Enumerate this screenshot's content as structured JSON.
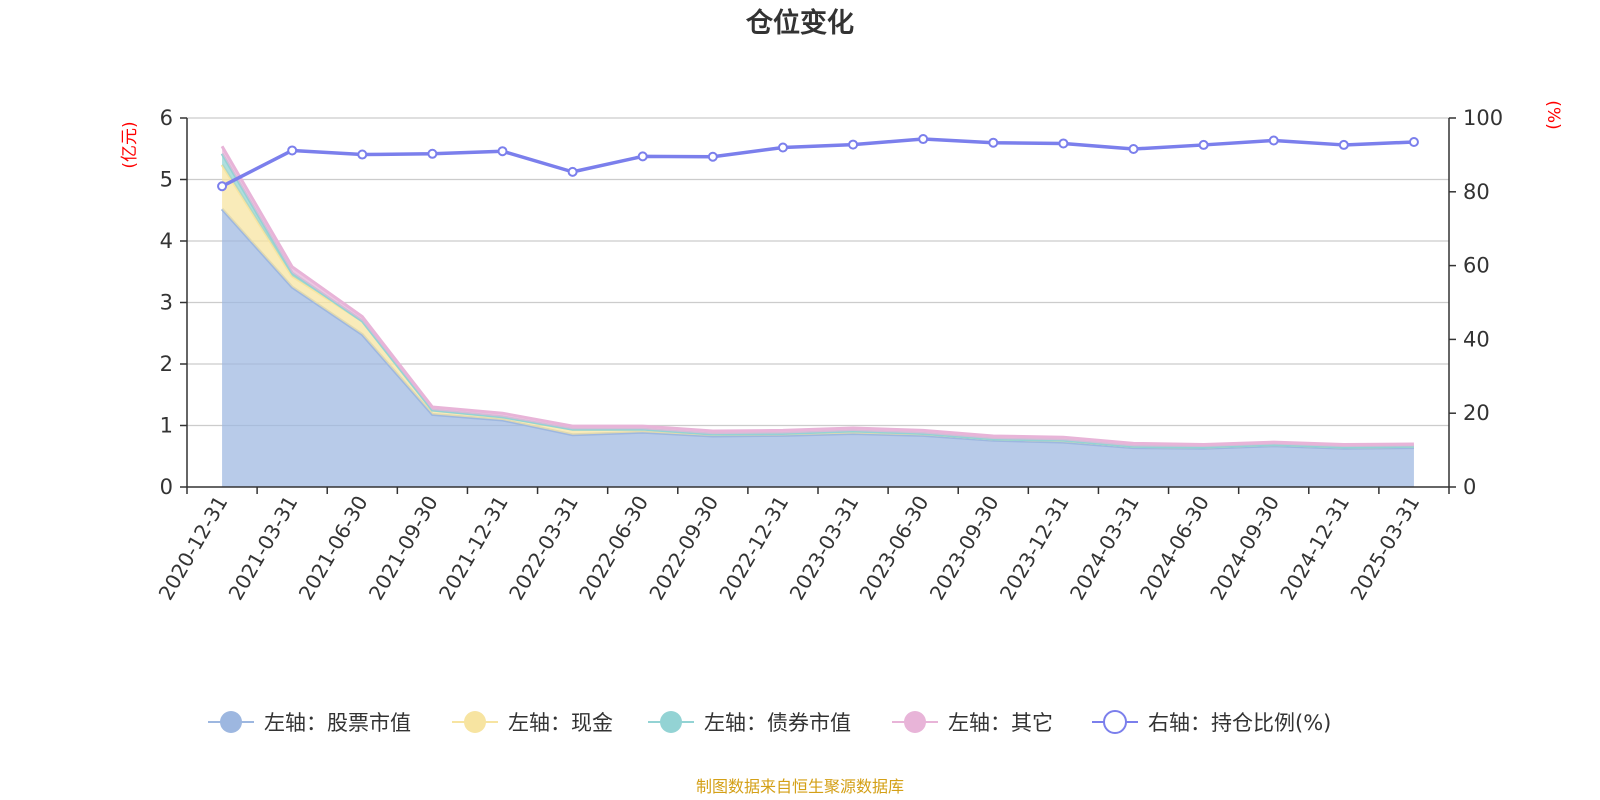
{
  "chart_data": {
    "type": "area",
    "title": "仓位变化",
    "categories": [
      "2020-12-31",
      "2021-03-31",
      "2021-06-30",
      "2021-09-30",
      "2021-12-31",
      "2022-03-31",
      "2022-06-30",
      "2022-09-30",
      "2022-12-31",
      "2023-03-31",
      "2023-06-30",
      "2023-09-30",
      "2023-12-31",
      "2024-03-31",
      "2024-06-30",
      "2024-09-30",
      "2024-12-31",
      "2025-03-31"
    ],
    "left_axis": {
      "unit": "(亿元)",
      "ylim": [
        0,
        6
      ],
      "ticks": [
        0,
        1,
        2,
        3,
        4,
        5,
        6
      ]
    },
    "right_axis": {
      "unit": "(%)",
      "ylim": [
        0,
        100
      ],
      "ticks": [
        0,
        20,
        40,
        60,
        80,
        100
      ]
    },
    "stacked": true,
    "grid": true,
    "legend_position": "bottom",
    "series": [
      {
        "name": "左轴：股票市值",
        "axis": "left",
        "type": "area",
        "color": "#9db7e0",
        "values": [
          4.52,
          3.25,
          2.48,
          1.18,
          1.09,
          0.85,
          0.89,
          0.83,
          0.84,
          0.87,
          0.84,
          0.76,
          0.73,
          0.64,
          0.63,
          0.67,
          0.63,
          0.64
        ]
      },
      {
        "name": "左轴：现金",
        "axis": "left",
        "type": "area",
        "color": "#f7e4a1",
        "values": [
          0.72,
          0.18,
          0.22,
          0.07,
          0.05,
          0.09,
          0.05,
          0.03,
          0.03,
          0.04,
          0.03,
          0.02,
          0.03,
          0.02,
          0.02,
          0.02,
          0.02,
          0.02
        ]
      },
      {
        "name": "左轴：债券市值",
        "axis": "left",
        "type": "area",
        "color": "#93d3d4",
        "values": [
          0.18,
          0.05,
          0.0,
          0.0,
          0.0,
          0.0,
          0.0,
          0.0,
          0.0,
          0.0,
          0.0,
          0.0,
          0.0,
          0.0,
          0.0,
          0.0,
          0.0,
          0.0
        ]
      },
      {
        "name": "左轴：其它",
        "axis": "left",
        "type": "area",
        "color": "#e8b4d8",
        "values": [
          0.12,
          0.1,
          0.07,
          0.05,
          0.06,
          0.05,
          0.05,
          0.05,
          0.05,
          0.05,
          0.05,
          0.05,
          0.05,
          0.05,
          0.04,
          0.04,
          0.04,
          0.04
        ]
      },
      {
        "name": "右轴：持仓比例(%)",
        "axis": "right",
        "type": "line",
        "color": "#7b7fec",
        "values": [
          81.5,
          91.2,
          90.1,
          90.3,
          91.0,
          85.4,
          89.6,
          89.5,
          92.0,
          92.8,
          94.3,
          93.3,
          93.1,
          91.6,
          92.7,
          93.9,
          92.7,
          93.5
        ]
      }
    ]
  },
  "source": "制图数据来自恒生聚源数据库"
}
